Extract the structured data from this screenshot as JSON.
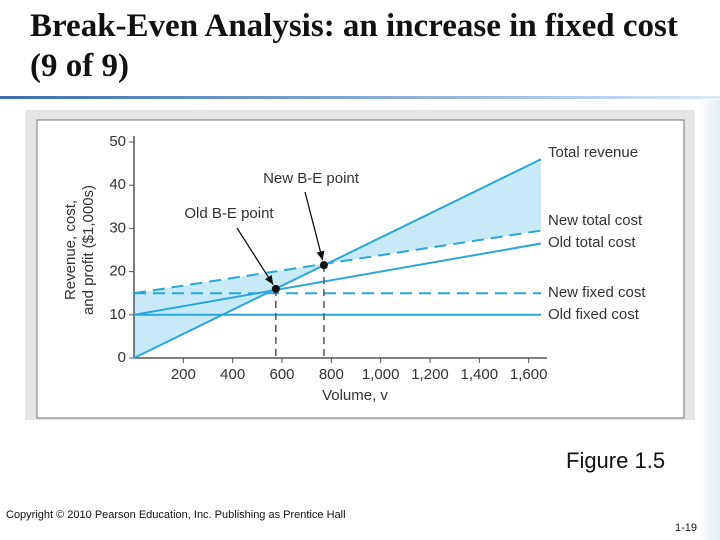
{
  "slide": {
    "title": "Break-Even Analysis: an increase in fixed cost (9 of 9)",
    "caption": "Figure 1.5",
    "copyright": "Copyright © 2010 Pearson Education, Inc. Publishing as Prentice Hall",
    "page": "1-19"
  },
  "chart_data": {
    "type": "line",
    "x_label": "Volume, v",
    "y_label": [
      "Revenue, cost,",
      "and profit ($1,000s)"
    ],
    "x": [
      0,
      1650
    ],
    "series": [
      {
        "name": "Total revenue",
        "color": "#2aa7d6",
        "dashed": false,
        "values": [
          0,
          46
        ]
      },
      {
        "name": "New total cost",
        "color": "#2aa7d6",
        "dashed": true,
        "values": [
          15,
          29.5
        ]
      },
      {
        "name": "Old total cost",
        "color": "#2aa7d6",
        "dashed": false,
        "values": [
          10,
          26.5
        ]
      },
      {
        "name": "New fixed cost",
        "color": "#2aa7d6",
        "dashed": true,
        "values": [
          15,
          15
        ]
      },
      {
        "name": "Old fixed cost",
        "color": "#2aa7d6",
        "dashed": false,
        "values": [
          10,
          10
        ]
      }
    ],
    "fill_color": "#c8eaf8",
    "points": [
      {
        "name": "Old B-E point",
        "x": 575,
        "y": 16
      },
      {
        "name": "New B-E point",
        "x": 770,
        "y": 21.5
      }
    ],
    "xlim": [
      0,
      1650
    ],
    "ylim": [
      0,
      50
    ],
    "xticks": [
      200,
      400,
      600,
      800,
      {
        "value": 1000,
        "label": "1,000"
      },
      {
        "value": 1200,
        "label": "1,200"
      },
      {
        "value": 1400,
        "label": "1,400"
      },
      {
        "value": 1600,
        "label": "1,600"
      }
    ],
    "yticks": [
      0,
      10,
      20,
      30,
      40,
      50
    ]
  }
}
